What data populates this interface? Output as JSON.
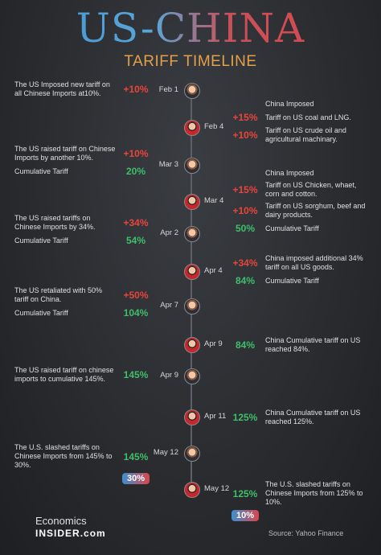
{
  "header": {
    "title": "US-CHINA",
    "subtitle": "TARIFF TIMELINE"
  },
  "events": [
    {
      "side": "left",
      "date": "Feb 1",
      "entries": [
        {
          "text": "The US Imposed new tariff on all Chinese Imports at10%.",
          "value": "+10%",
          "color": "#e8453c"
        }
      ]
    },
    {
      "side": "right",
      "date": "Feb 4",
      "entries": [
        {
          "text": "China Imposed"
        },
        {
          "text": "Tariff on US coal and LNG.",
          "value": "+15%",
          "color": "#e8453c"
        },
        {
          "text": "Tariff on US crude oil and agricultural machinary.",
          "value": "+10%",
          "color": "#e8453c"
        }
      ]
    },
    {
      "side": "left",
      "date": "Mar 3",
      "entries": [
        {
          "text": "The US raised tariff on Chinese Imports by another 10%.",
          "value": "+10%",
          "color": "#e8453c"
        },
        {
          "text": "Cumulative Tariff",
          "value": "20%",
          "color": "#3fbf6a"
        }
      ]
    },
    {
      "side": "right",
      "date": "Mar 4",
      "entries": [
        {
          "text": "China Imposed"
        },
        {
          "text": "Tariff on US Chicken, whaet, corn and cotton.",
          "value": "+15%",
          "color": "#e8453c"
        },
        {
          "text": "Tariff on US sorghum, beef and dairy products.",
          "value": "+10%",
          "color": "#e8453c"
        },
        {
          "text": "Cumulative Tariff",
          "value": "50%",
          "color": "#3fbf6a"
        }
      ]
    },
    {
      "side": "left",
      "date": "Apr 2",
      "entries": [
        {
          "text": "The US raised tariffs on Chinese Imports by 34%.",
          "value": "+34%",
          "color": "#e8453c"
        },
        {
          "text": "Cumulative Tariff",
          "value": "54%",
          "color": "#3fbf6a"
        }
      ]
    },
    {
      "side": "right",
      "date": "Apr 4",
      "entries": [
        {
          "text": "China imposed additional 34% tariff on all US goods.",
          "value": "+34%",
          "color": "#e8453c"
        },
        {
          "text": "Cumulative Tariff",
          "value": "84%",
          "color": "#3fbf6a"
        }
      ]
    },
    {
      "side": "left",
      "date": "Apr 7",
      "entries": [
        {
          "text": "The US retaliated with 50% tariff on China.",
          "value": "+50%",
          "color": "#e8453c"
        },
        {
          "text": "Cumulative Tariff",
          "value": "104%",
          "color": "#3fbf6a"
        }
      ]
    },
    {
      "side": "right",
      "date": "Apr 9",
      "entries": [
        {
          "text": "China Cumulative tariff on US reached 84%.",
          "value": "84%",
          "color": "#3fbf6a"
        }
      ]
    },
    {
      "side": "left",
      "date": "Apr 9",
      "entries": [
        {
          "text": "The US raised tariff on chinese imports to cumulative 145%.",
          "value": "145%",
          "color": "#3fbf6a"
        }
      ]
    },
    {
      "side": "right",
      "date": "Apr 11",
      "entries": [
        {
          "text": "China Cumulative tariff on US reached 125%.",
          "value": "125%",
          "color": "#3fbf6a"
        }
      ]
    },
    {
      "side": "left",
      "date": "May 12",
      "entries": [
        {
          "text": "The U.S. slashed tariffs on Chinese Imports from 145% to 30%.",
          "value": "145%",
          "color": "#3fbf6a"
        },
        {
          "badge": "30%"
        }
      ]
    },
    {
      "side": "right",
      "date": "May 12",
      "entries": [
        {
          "text": "The U.S. slashed tariffs on Chinese Imports from 125% to 10%.",
          "value": "125%",
          "color": "#3fbf6a"
        },
        {
          "badge": "10%"
        }
      ]
    }
  ],
  "footer": {
    "brand_top": "Economics",
    "brand_bottom": "INSIDER",
    "brand_suffix": ".com",
    "source": "Source: Yahoo Finance"
  }
}
